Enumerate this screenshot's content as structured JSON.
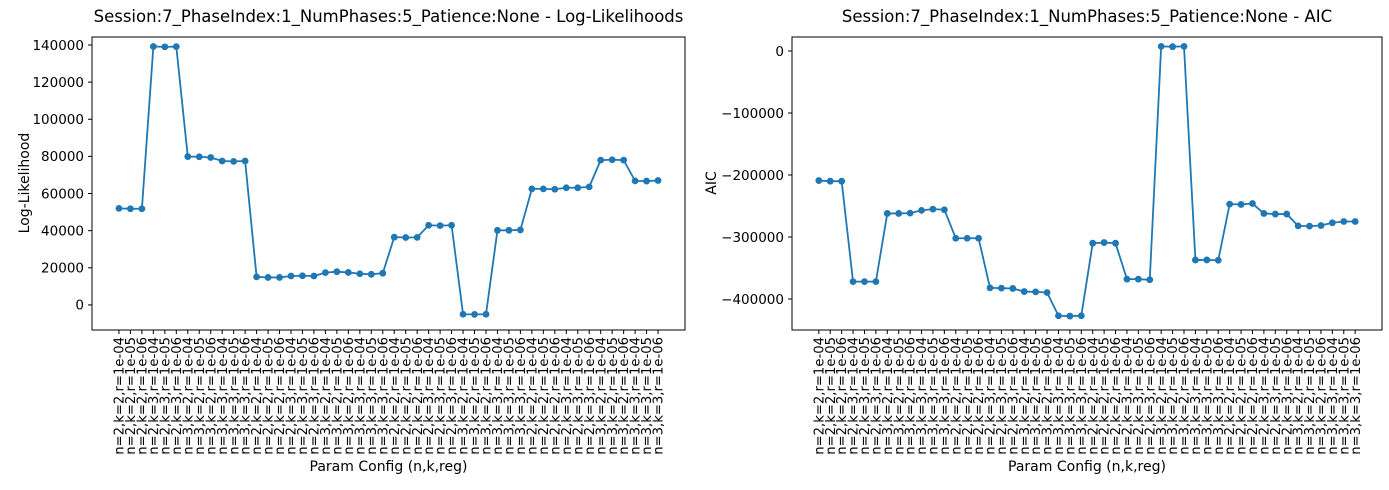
{
  "figure": {
    "background_color": "#ffffff",
    "accent_color": "#1f77b4"
  },
  "chart_data": [
    {
      "type": "line",
      "title": "Session:7_PhaseIndex:1_NumPhases:5_Patience:None - Log-Likelihoods",
      "xlabel": "Param Config (n,k,reg)",
      "ylabel": "Log-Likelihood",
      "legend_position": "none",
      "grid": false,
      "line_color": "#1f77b4",
      "marker": "circle",
      "ylim": [
        -13500,
        144300
      ],
      "ytick_values": [
        0,
        20000,
        40000,
        60000,
        80000,
        100000,
        120000,
        140000
      ],
      "ytick_labels": [
        "0",
        "20000",
        "40000",
        "60000",
        "80000",
        "100000",
        "120000",
        "140000"
      ],
      "xtick_rotation": 90,
      "categories": [
        "n=2,k=2,r=1e-04",
        "n=2,k=2,r=1e-05",
        "n=2,k=2,r=1e-06",
        "n=2,k=3,r=1e-04",
        "n=2,k=3,r=1e-05",
        "n=2,k=3,r=1e-06",
        "n=3,k=2,r=1e-04",
        "n=3,k=2,r=1e-05",
        "n=3,k=2,r=1e-06",
        "n=3,k=3,r=1e-04",
        "n=3,k=3,r=1e-05",
        "n=3,k=3,r=1e-06",
        "n=2,k=2,r=1e-04",
        "n=2,k=2,r=1e-05",
        "n=2,k=2,r=1e-06",
        "n=2,k=3,r=1e-04",
        "n=2,k=3,r=1e-05",
        "n=2,k=3,r=1e-06",
        "n=3,k=2,r=1e-04",
        "n=3,k=2,r=1e-05",
        "n=3,k=2,r=1e-06",
        "n=3,k=3,r=1e-04",
        "n=3,k=3,r=1e-05",
        "n=3,k=3,r=1e-06",
        "n=2,k=2,r=1e-04",
        "n=2,k=2,r=1e-05",
        "n=2,k=2,r=1e-06",
        "n=2,k=3,r=1e-04",
        "n=2,k=3,r=1e-05",
        "n=2,k=3,r=1e-06",
        "n=3,k=2,r=1e-04",
        "n=3,k=2,r=1e-05",
        "n=3,k=2,r=1e-06",
        "n=3,k=3,r=1e-04",
        "n=3,k=3,r=1e-05",
        "n=3,k=3,r=1e-06",
        "n=2,k=2,r=1e-04",
        "n=2,k=2,r=1e-05",
        "n=2,k=2,r=1e-06",
        "n=2,k=3,r=1e-04",
        "n=2,k=3,r=1e-05",
        "n=2,k=3,r=1e-06",
        "n=3,k=2,r=1e-04",
        "n=3,k=2,r=1e-05",
        "n=3,k=2,r=1e-06",
        "n=3,k=3,r=1e-04",
        "n=3,k=3,r=1e-05",
        "n=3,k=3,r=1e-06"
      ],
      "values": [
        52000,
        51800,
        51800,
        139200,
        139000,
        139100,
        79900,
        79800,
        79400,
        77500,
        77300,
        77500,
        15100,
        14800,
        14800,
        15600,
        15700,
        15600,
        17400,
        17900,
        17500,
        16800,
        16500,
        17100,
        36500,
        36300,
        36400,
        42900,
        42700,
        42900,
        -5000,
        -5100,
        -5000,
        40200,
        40200,
        40400,
        62500,
        62500,
        62300,
        63100,
        63100,
        63600,
        78000,
        78200,
        78000,
        66800,
        66700,
        67000
      ]
    },
    {
      "type": "line",
      "title": "Session:7_PhaseIndex:1_NumPhases:5_Patience:None - AIC",
      "xlabel": "Param Config (n,k,reg)",
      "ylabel": "AIC",
      "legend_position": "none",
      "grid": false,
      "line_color": "#1f77b4",
      "marker": "circle",
      "ylim": [
        -450000,
        22600
      ],
      "ytick_values": [
        0,
        -100000,
        -200000,
        -300000,
        -400000
      ],
      "ytick_labels": [
        "0",
        "−100000",
        "−200000",
        "−300000",
        "−400000"
      ],
      "xtick_rotation": 90,
      "categories": [
        "n=2,k=2,r=1e-04",
        "n=2,k=2,r=1e-05",
        "n=2,k=2,r=1e-06",
        "n=2,k=3,r=1e-04",
        "n=2,k=3,r=1e-05",
        "n=2,k=3,r=1e-06",
        "n=3,k=2,r=1e-04",
        "n=3,k=2,r=1e-05",
        "n=3,k=2,r=1e-06",
        "n=3,k=3,r=1e-04",
        "n=3,k=3,r=1e-05",
        "n=3,k=3,r=1e-06",
        "n=2,k=2,r=1e-04",
        "n=2,k=2,r=1e-05",
        "n=2,k=2,r=1e-06",
        "n=2,k=3,r=1e-04",
        "n=2,k=3,r=1e-05",
        "n=2,k=3,r=1e-06",
        "n=3,k=2,r=1e-04",
        "n=3,k=2,r=1e-05",
        "n=3,k=2,r=1e-06",
        "n=3,k=3,r=1e-04",
        "n=3,k=3,r=1e-05",
        "n=3,k=3,r=1e-06",
        "n=2,k=2,r=1e-04",
        "n=2,k=2,r=1e-05",
        "n=2,k=2,r=1e-06",
        "n=2,k=3,r=1e-04",
        "n=2,k=3,r=1e-05",
        "n=2,k=3,r=1e-06",
        "n=3,k=2,r=1e-04",
        "n=3,k=2,r=1e-05",
        "n=3,k=2,r=1e-06",
        "n=3,k=3,r=1e-04",
        "n=3,k=3,r=1e-05",
        "n=3,k=3,r=1e-06",
        "n=2,k=2,r=1e-04",
        "n=2,k=2,r=1e-05",
        "n=2,k=2,r=1e-06",
        "n=2,k=3,r=1e-04",
        "n=2,k=3,r=1e-05",
        "n=2,k=3,r=1e-06",
        "n=3,k=2,r=1e-04",
        "n=3,k=2,r=1e-05",
        "n=3,k=2,r=1e-06",
        "n=3,k=3,r=1e-04",
        "n=3,k=3,r=1e-05",
        "n=3,k=3,r=1e-06"
      ],
      "values": [
        -209000,
        -210000,
        -210000,
        -372000,
        -372000,
        -372000,
        -262000,
        -262000,
        -261500,
        -257000,
        -255000,
        -256000,
        -302000,
        -302000,
        -302000,
        -382000,
        -382500,
        -383000,
        -388000,
        -388500,
        -389500,
        -427000,
        -427500,
        -427000,
        -310000,
        -309000,
        -310000,
        -368000,
        -368000,
        -369000,
        7500,
        7000,
        7500,
        -337000,
        -337000,
        -337500,
        -247000,
        -247500,
        -246000,
        -262000,
        -263000,
        -263000,
        -282000,
        -282500,
        -281500,
        -277000,
        -275000,
        -275000
      ]
    }
  ]
}
